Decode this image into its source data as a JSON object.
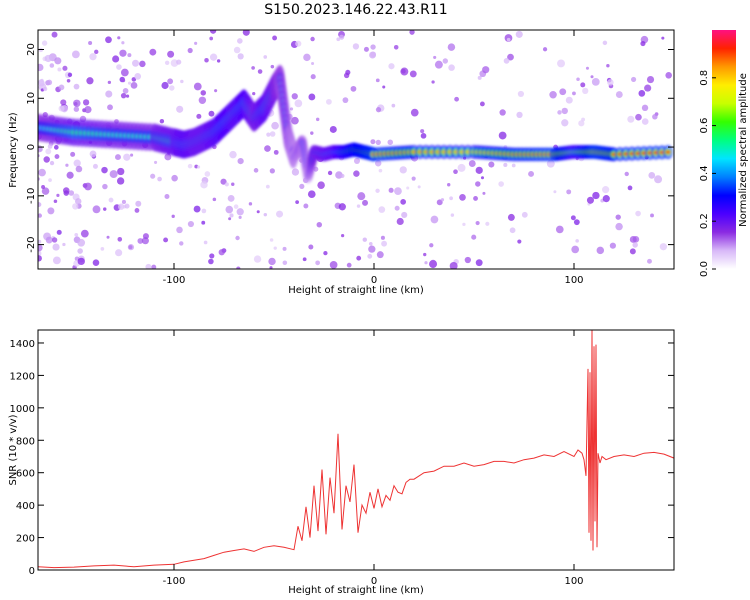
{
  "title": "S150.2023.146.22.43.R11",
  "chart_data": [
    {
      "type": "heatmap",
      "xlabel": "Height of straight line (km)",
      "ylabel": "Frequency (Hz)",
      "xlim": [
        -168,
        150
      ],
      "ylim": [
        -25,
        24
      ],
      "xticks": [
        -100,
        0,
        100
      ],
      "yticks": [
        -20,
        -10,
        0,
        10,
        20
      ],
      "colorbar": {
        "label": "Normalized spectral amplitude",
        "ticks": [
          0.0,
          0.2,
          0.4,
          0.6,
          0.8
        ],
        "range": [
          0,
          1
        ],
        "colormap": "rainbow",
        "stops": [
          "#ffffff",
          "#d8b8f8",
          "#8b2be2",
          "#4b00ff",
          "#0000ff",
          "#0080ff",
          "#00e5ff",
          "#00ff80",
          "#33ff00",
          "#c8ff00",
          "#ffee00",
          "#ff9900",
          "#ff2200",
          "#ff1080"
        ]
      },
      "ridge": {
        "x": [
          -168,
          -150,
          -130,
          -110,
          -100,
          -95,
          -90,
          -85,
          -80,
          -75,
          -70,
          -65,
          -60,
          -55,
          -50,
          -47,
          -43,
          -40,
          -36,
          -33,
          -30,
          -25,
          -20,
          -15,
          -10,
          -5,
          0,
          20,
          50,
          70,
          90,
          100,
          110,
          120,
          150
        ],
        "y": [
          4,
          3,
          2.5,
          2,
          1,
          0.5,
          1,
          2,
          3,
          5,
          7,
          9,
          6,
          8,
          12,
          14,
          2,
          -2,
          1,
          -6,
          -1,
          -1.5,
          -1,
          -1,
          -0.5,
          -1,
          -1.5,
          -1,
          -1,
          -1.5,
          -1.5,
          -1,
          -1,
          -1.5,
          -1
        ],
        "amp": [
          0.45,
          0.55,
          0.5,
          0.5,
          0.55,
          0.6,
          0.55,
          0.55,
          0.6,
          0.65,
          0.6,
          0.65,
          0.5,
          0.6,
          0.5,
          0.4,
          0.35,
          0.3,
          0.35,
          0.25,
          0.5,
          0.55,
          0.6,
          0.75,
          0.85,
          0.9,
          0.95,
          0.85,
          0.8,
          0.9,
          0.95,
          0.7,
          0.95,
          0.9,
          0.95
        ]
      }
    },
    {
      "type": "line",
      "xlabel": "Height of straight line (km)",
      "ylabel": "SNR (10 * v/v)",
      "xlim": [
        -168,
        150
      ],
      "ylim": [
        0,
        1480
      ],
      "xticks": [
        -100,
        0,
        100
      ],
      "yticks": [
        0,
        200,
        400,
        600,
        800,
        1000,
        1200,
        1400
      ],
      "color": "#ee3333",
      "x": [
        -168,
        -160,
        -150,
        -140,
        -130,
        -120,
        -110,
        -100,
        -95,
        -90,
        -85,
        -80,
        -75,
        -70,
        -65,
        -60,
        -55,
        -50,
        -45,
        -40,
        -38,
        -36,
        -34,
        -32,
        -30,
        -28,
        -26,
        -24,
        -22,
        -20,
        -18,
        -16,
        -14,
        -12,
        -10,
        -8,
        -6,
        -4,
        -2,
        0,
        2,
        4,
        6,
        8,
        10,
        12,
        14,
        16,
        18,
        20,
        25,
        30,
        35,
        40,
        45,
        50,
        55,
        60,
        65,
        70,
        75,
        80,
        85,
        90,
        95,
        100,
        102,
        104,
        105,
        106,
        107,
        107.5,
        108,
        108.5,
        109,
        109.5,
        110,
        110.5,
        111,
        111.5,
        112,
        113,
        114,
        116,
        120,
        125,
        130,
        135,
        140,
        145,
        150
      ],
      "y": [
        20,
        15,
        18,
        25,
        30,
        20,
        30,
        35,
        50,
        60,
        70,
        90,
        110,
        120,
        130,
        115,
        140,
        150,
        140,
        125,
        270,
        180,
        390,
        200,
        520,
        240,
        620,
        220,
        570,
        350,
        840,
        250,
        520,
        420,
        650,
        230,
        400,
        350,
        480,
        380,
        500,
        390,
        460,
        430,
        520,
        480,
        470,
        540,
        560,
        560,
        600,
        610,
        640,
        640,
        660,
        640,
        650,
        670,
        670,
        660,
        680,
        690,
        710,
        700,
        730,
        700,
        740,
        720,
        680,
        580,
        1240,
        230,
        1220,
        180,
        1480,
        120,
        1380,
        300,
        1390,
        140,
        720,
        660,
        700,
        680,
        700,
        710,
        700,
        720,
        725,
        715,
        690
      ]
    }
  ]
}
